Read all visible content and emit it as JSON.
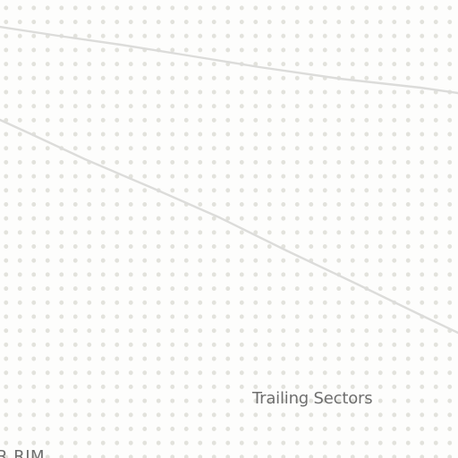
{
  "map": {
    "area_label": "Trailing Sectors",
    "edge_label": "R RIM"
  },
  "colors": {
    "background": "#fdfdfc",
    "dot_pattern": "#e2e2dc",
    "road": "#dcdcda",
    "label": "#6e6e6e"
  }
}
